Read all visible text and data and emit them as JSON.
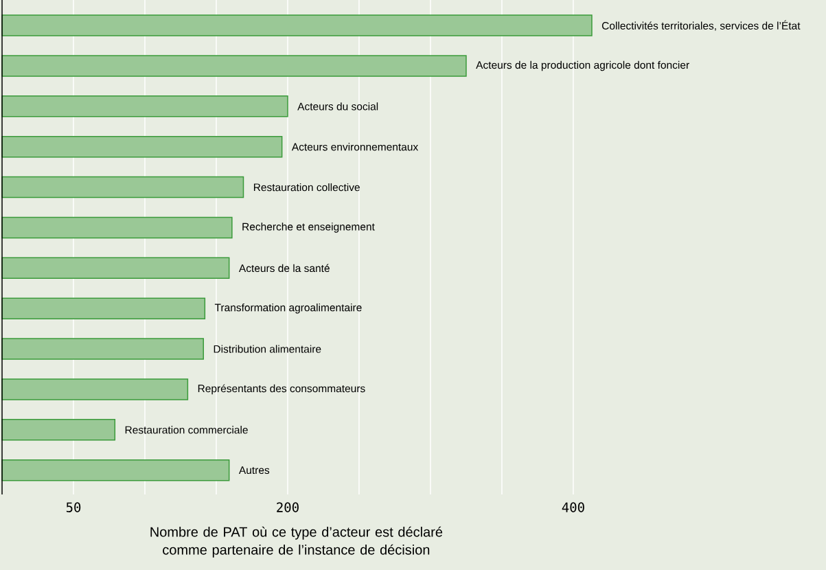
{
  "chart_data": {
    "type": "bar",
    "orientation": "horizontal",
    "xlabel": "Nombre de PAT où ce type d’acteur est déclaré comme partenaire de l’instance de décision",
    "categories": [
      "Collectivités territoriales, services de l’État",
      "Acteurs de la production agricole dont foncier",
      "Acteurs du social",
      "Acteurs environnementaux",
      "Restauration collective",
      "Recherche et enseignement",
      "Acteurs de la santé",
      "Transformation agroalimentaire",
      "Distribution alimentaire",
      "Représentants des consommateurs",
      "Restauration commerciale",
      "Autres"
    ],
    "values": [
      413,
      325,
      200,
      196,
      169,
      161,
      159,
      142,
      141,
      130,
      79,
      159
    ],
    "color": "#3a9a3a",
    "xlim": [
      0,
      577
    ],
    "xticks": [
      50,
      {
        "value": 100,
        "label": null
      },
      {
        "value": 150,
        "label": null
      },
      200,
      {
        "value": 250,
        "label": null
      },
      {
        "value": 300,
        "label": null
      },
      {
        "value": 350,
        "label": null
      },
      400
    ],
    "grid": "x"
  }
}
